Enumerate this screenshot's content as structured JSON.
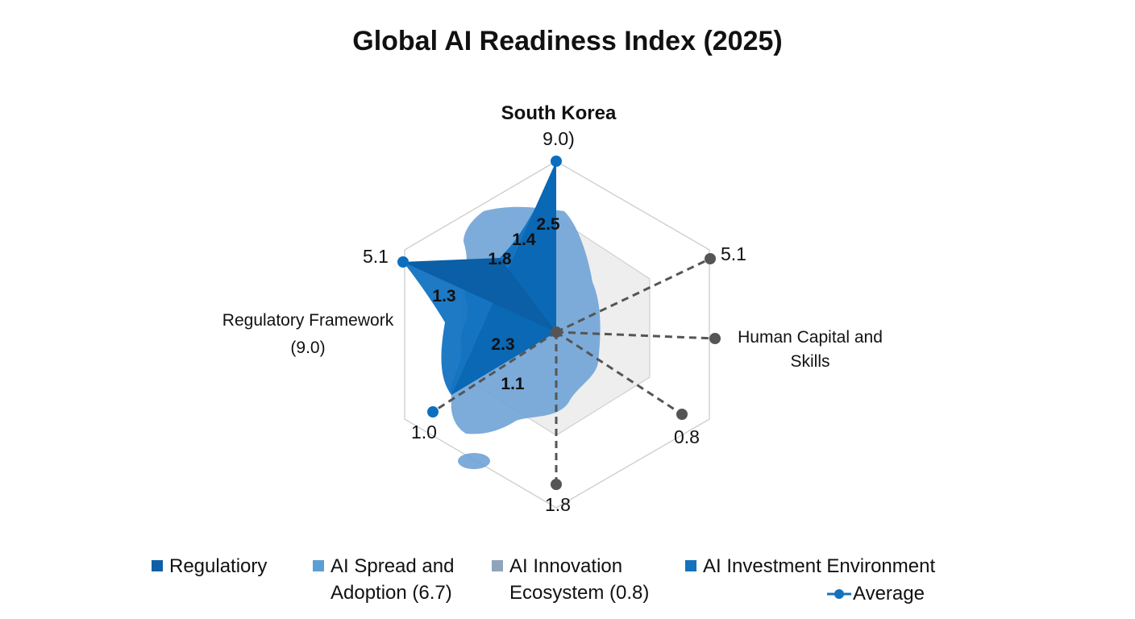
{
  "chart_data": {
    "type": "radar",
    "title": "Global AI Readiness Index (2025)",
    "axis_labels": {
      "top": [
        "South Korea",
        "9.0)"
      ],
      "upper_left_value": "5.1",
      "left": [
        "Regulatory Framework",
        "(9.0)"
      ],
      "lower_left_value": "1.0",
      "bottom_value": "1.8",
      "lower_right_value": "0.8",
      "right": [
        "Human Capital and",
        "Skills"
      ],
      "upper_right_value": "5.1"
    },
    "blue_series_points": [
      9.0,
      5.1,
      1.0
    ],
    "grey_series_points": [
      5.1,
      0.0,
      0.8,
      1.8
    ],
    "inner_labels": [
      "2.5",
      "1.4",
      "1.8",
      "1.3",
      "2.3",
      "1.1"
    ],
    "legend": [
      {
        "label": [
          "Regulatiory"
        ],
        "color": "#0f5fa8"
      },
      {
        "label": [
          "AI Spread and",
          "Adoption (6.7)"
        ],
        "color": "#5b9fd6"
      },
      {
        "label": [
          "AI Innovation",
          "Ecosystem (0.8)"
        ],
        "color": "#8fa4bb"
      },
      {
        "label": [
          "AI Investment Environment"
        ],
        "color": "#1571be"
      },
      {
        "label": [
          "Average"
        ],
        "color": "#1571be",
        "marker": "line-dot"
      }
    ],
    "colors": {
      "blue": "#0b6fc0",
      "grey_dot": "#555555",
      "map": "#6fa3d6"
    }
  }
}
